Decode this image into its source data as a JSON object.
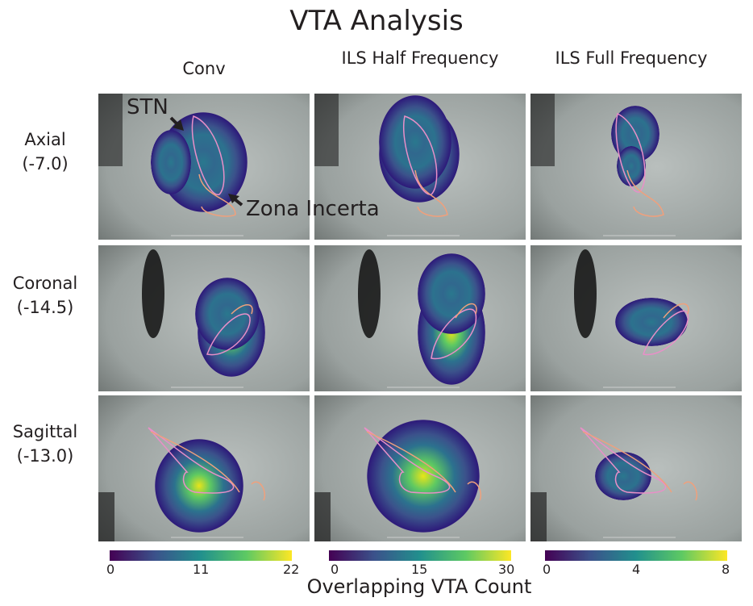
{
  "title": "VTA Analysis",
  "columns": [
    {
      "label": "Conv",
      "colorbar": {
        "min": 0,
        "mid": 11,
        "max": 22,
        "ticks": [
          "0",
          "11",
          "22"
        ]
      }
    },
    {
      "label": "ILS Half Frequency",
      "colorbar": {
        "min": 0,
        "mid": 15,
        "max": 30,
        "ticks": [
          "0",
          "15",
          "30"
        ]
      }
    },
    {
      "label": "ILS Full Frequency",
      "colorbar": {
        "min": 0,
        "mid": 4,
        "max": 8,
        "ticks": [
          "0",
          "4",
          "8"
        ]
      }
    }
  ],
  "rows": [
    {
      "label": "Axial",
      "value": "(-7.0)"
    },
    {
      "label": "Coronal",
      "value": "(-14.5)"
    },
    {
      "label": "Sagittal",
      "value": "(-13.0)"
    }
  ],
  "annotations": {
    "stn": "STN",
    "zona_incerta": "Zona Incerta"
  },
  "colorbar_label": "Overlapping VTA Count",
  "colors": {
    "stn_outline": "#e98fc8",
    "zi_outline": "#f0a07c",
    "colormap": "viridis"
  }
}
